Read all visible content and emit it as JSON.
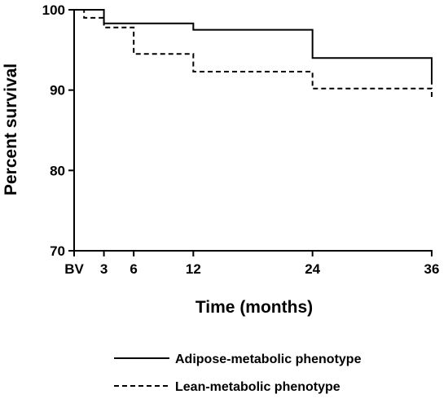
{
  "chart_data": {
    "type": "line",
    "subtype": "step (Kaplan-Meier survival curve)",
    "xlabel": "Time (months)",
    "ylabel": "Percent survival",
    "x_ticks": [
      {
        "value": 0,
        "label": "BV"
      },
      {
        "value": 3,
        "label": "3"
      },
      {
        "value": 6,
        "label": "6"
      },
      {
        "value": 12,
        "label": "12"
      },
      {
        "value": 24,
        "label": "24"
      },
      {
        "value": 36,
        "label": "36"
      }
    ],
    "y_ticks": [
      70,
      80,
      90,
      100
    ],
    "xlim": [
      0,
      36
    ],
    "ylim": [
      70,
      100
    ],
    "grid": false,
    "legend_position": "bottom",
    "series": [
      {
        "name": "Adipose-metabolic phenotype",
        "line_style": "solid",
        "color": "#000000",
        "points": [
          {
            "x": 0,
            "y": 100
          },
          {
            "x": 3,
            "y": 98.3
          },
          {
            "x": 12,
            "y": 97.5
          },
          {
            "x": 24,
            "y": 94
          },
          {
            "x": 36,
            "y": 90.7
          }
        ]
      },
      {
        "name": "Lean-metabolic phenotype",
        "line_style": "dashed",
        "color": "#000000",
        "points": [
          {
            "x": 0,
            "y": 100
          },
          {
            "x": 1,
            "y": 99
          },
          {
            "x": 3,
            "y": 97.8
          },
          {
            "x": 6,
            "y": 94.5
          },
          {
            "x": 12,
            "y": 92.3
          },
          {
            "x": 24,
            "y": 90.2
          },
          {
            "x": 36,
            "y": 89
          }
        ]
      }
    ]
  }
}
